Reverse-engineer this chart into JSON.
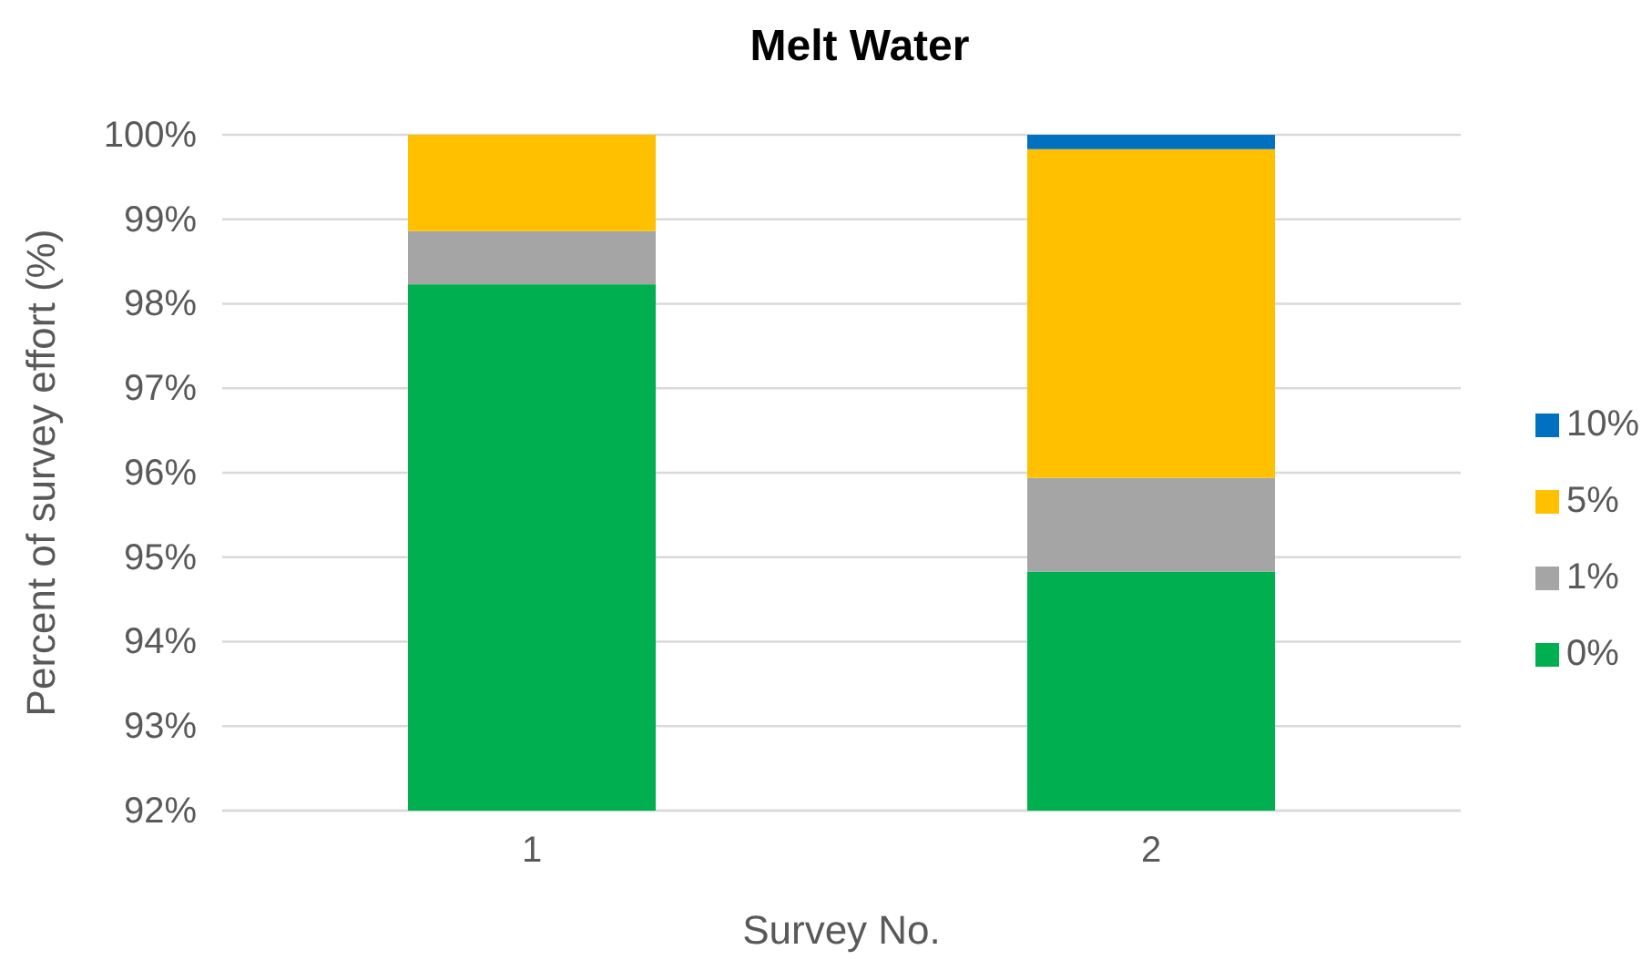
{
  "chart_data": {
    "type": "bar",
    "title": "Melt Water",
    "xlabel": "Survey No.",
    "ylabel": "Percent of survey effort (%)",
    "categories": [
      "1",
      "2"
    ],
    "stacked": true,
    "series": [
      {
        "name": "0%",
        "color": "#00b050",
        "values": [
          98.23,
          94.83
        ]
      },
      {
        "name": "1%",
        "color": "#a5a5a5",
        "base": [
          98.23,
          94.83
        ],
        "values": [
          0.63,
          1.11
        ]
      },
      {
        "name": "5%",
        "color": "#ffc000",
        "base": [
          98.86,
          95.94
        ],
        "values": [
          1.14,
          3.89
        ]
      },
      {
        "name": "10%",
        "color": "#0070c0",
        "base": [
          null,
          99.83
        ],
        "values": [
          null,
          0.17
        ]
      }
    ],
    "ylim": [
      92,
      100
    ],
    "yticks": [
      {
        "value": 92,
        "label": "92%"
      },
      {
        "value": 93,
        "label": "93%"
      },
      {
        "value": 94,
        "label": "94%"
      },
      {
        "value": 95,
        "label": "95%"
      },
      {
        "value": 96,
        "label": "96%"
      },
      {
        "value": 97,
        "label": "97%"
      },
      {
        "value": 98,
        "label": "98%"
      },
      {
        "value": 99,
        "label": "99%"
      },
      {
        "value": 100,
        "label": "100%"
      }
    ],
    "grid": "y",
    "legend": "right"
  }
}
